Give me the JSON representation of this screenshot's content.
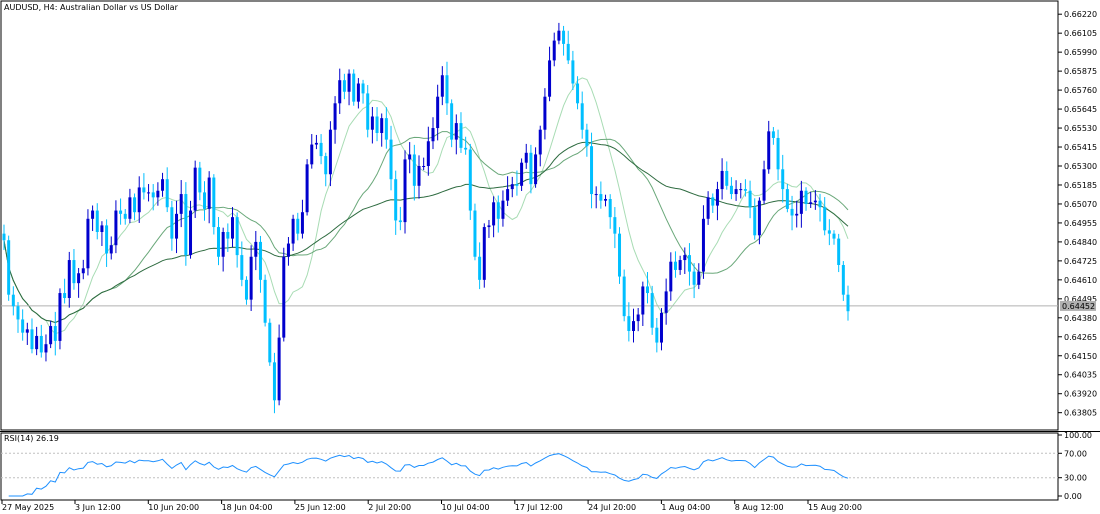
{
  "chart_data": {
    "type": "candlestick",
    "title": "AUDUSD, H4:  Australian Dollar vs US Dollar",
    "current_price": "0.64452",
    "price_axis": {
      "min": 0.637,
      "max": 0.663,
      "ticks": [
        "0.66220",
        "0.66105",
        "0.65990",
        "0.65875",
        "0.65760",
        "0.65645",
        "0.65530",
        "0.65415",
        "0.65300",
        "0.65185",
        "0.65070",
        "0.64955",
        "0.64840",
        "0.64725",
        "0.64610",
        "0.64495",
        "0.64380",
        "0.64265",
        "0.64150",
        "0.64035",
        "0.63920",
        "0.63805"
      ]
    },
    "time_axis": {
      "ticks": [
        "27 May 2025",
        "3 Jun 12:00",
        "10 Jun 20:00",
        "18 Jun 04:00",
        "25 Jun 12:00",
        "2 Jul 20:00",
        "10 Jul 04:00",
        "17 Jul 12:00",
        "24 Jul 20:00",
        "1 Aug 04:00",
        "8 Aug 12:00",
        "15 Aug 20:00"
      ]
    },
    "closes": [
      0.6485,
      0.6452,
      0.6445,
      0.6437,
      0.6429,
      0.6431,
      0.6419,
      0.6427,
      0.6417,
      0.6422,
      0.6433,
      0.6424,
      0.6453,
      0.645,
      0.6473,
      0.6459,
      0.6465,
      0.6468,
      0.6498,
      0.6503,
      0.649,
      0.6494,
      0.6477,
      0.6482,
      0.6503,
      0.6501,
      0.6498,
      0.6511,
      0.6502,
      0.6517,
      0.6514,
      0.6514,
      0.6511,
      0.6515,
      0.6522,
      0.6505,
      0.6486,
      0.6501,
      0.6513,
      0.6476,
      0.6503,
      0.6529,
      0.6514,
      0.6504,
      0.6523,
      0.6493,
      0.6475,
      0.649,
      0.6486,
      0.6499,
      0.6476,
      0.6461,
      0.6449,
      0.6475,
      0.6484,
      0.6461,
      0.6435,
      0.6411,
      0.6388,
      0.6426,
      0.6475,
      0.6483,
      0.6498,
      0.6489,
      0.6502,
      0.6531,
      0.6543,
      0.6544,
      0.6536,
      0.6525,
      0.6552,
      0.6568,
      0.6582,
      0.6575,
      0.6586,
      0.6569,
      0.658,
      0.6574,
      0.6552,
      0.656,
      0.655,
      0.6559,
      0.6546,
      0.6522,
      0.6497,
      0.6496,
      0.6534,
      0.6537,
      0.6518,
      0.653,
      0.653,
      0.6545,
      0.6553,
      0.6572,
      0.6585,
      0.6568,
      0.6546,
      0.6556,
      0.6541,
      0.654,
      0.6503,
      0.6475,
      0.6461,
      0.6493,
      0.6494,
      0.6508,
      0.6498,
      0.6509,
      0.6516,
      0.6519,
      0.6518,
      0.6532,
      0.6538,
      0.6519,
      0.6537,
      0.6552,
      0.6572,
      0.6594,
      0.6606,
      0.6612,
      0.6604,
      0.6594,
      0.658,
      0.6568,
      0.6552,
      0.6542,
      0.6513,
      0.6513,
      0.6509,
      0.651,
      0.6499,
      0.6489,
      0.6463,
      0.6439,
      0.643,
      0.6436,
      0.644,
      0.6457,
      0.6453,
      0.6432,
      0.6423,
      0.6441,
      0.6454,
      0.6472,
      0.6467,
      0.6473,
      0.6476,
      0.6466,
      0.6458,
      0.6466,
      0.6498,
      0.6511,
      0.6506,
      0.6516,
      0.6527,
      0.6518,
      0.6513,
      0.6516,
      0.6516,
      0.6515,
      0.6505,
      0.6488,
      0.6509,
      0.6528,
      0.6551,
      0.6547,
      0.6528,
      0.6516,
      0.6504,
      0.65,
      0.6501,
      0.6515,
      0.6507,
      0.6508,
      0.6509,
      0.6505,
      0.6491,
      0.6489,
      0.6486,
      0.647,
      0.6452,
      0.6442
    ],
    "rsi": {
      "label": "RSI(14) 26.19",
      "levels": [
        "100.00",
        "70.00",
        "30.00",
        "0.00"
      ]
    }
  }
}
